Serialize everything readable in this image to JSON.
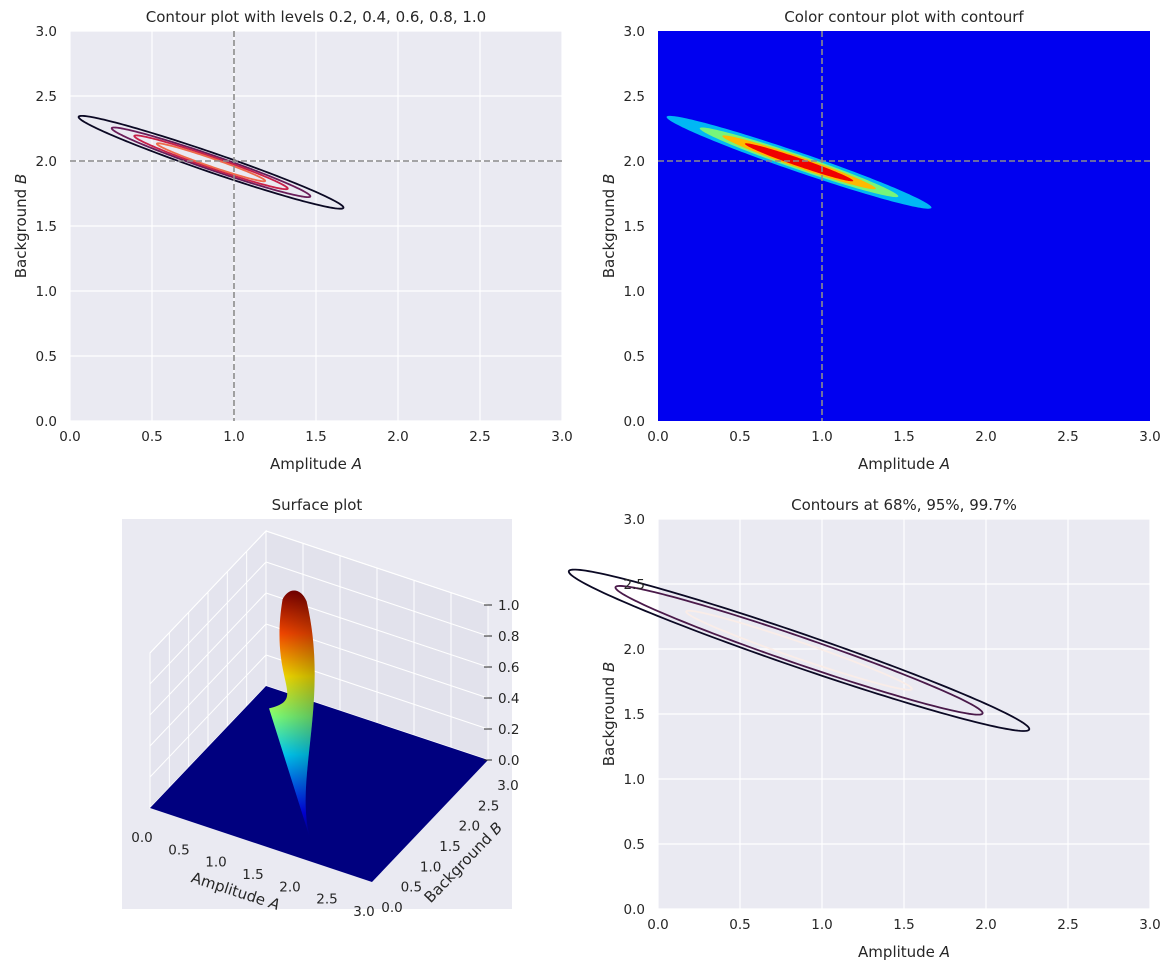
{
  "colors": {
    "axes_bg": "#EAEAF2",
    "grid": "#FFFFFF",
    "text": "#262626",
    "dashed": "#8C8C8C",
    "fill_bg": "#0000F0",
    "fill_levels": [
      "#00B7F5",
      "#76F57A",
      "#FFB900",
      "#F00000"
    ],
    "line_levels": [
      "#0B0924",
      "#6A1E5A",
      "#C8204A",
      "#EE6A4A",
      "#F6B48A"
    ],
    "conf_levels": [
      "#0B0924",
      "#4A1A4A",
      "#FAEDE8"
    ]
  },
  "chart_data": [
    {
      "id": "contour",
      "type": "contour",
      "title": "Contour plot with levels 0.2, 0.4, 0.6, 0.8, 1.0",
      "xlabel": "Amplitude A",
      "ylabel": "Background B",
      "xlim": [
        0,
        3
      ],
      "ylim": [
        0,
        3
      ],
      "xticks": [
        "0.0",
        "0.5",
        "1.0",
        "1.5",
        "2.0",
        "2.5",
        "3.0"
      ],
      "yticks": [
        "0.0",
        "0.5",
        "1.0",
        "1.5",
        "2.0",
        "2.5",
        "3.0"
      ],
      "center": [
        0.86,
        1.99
      ],
      "tilt_deg": -23.5,
      "levels": [
        {
          "level": 0.2,
          "semi_major": 0.88,
          "semi_minor": 0.072
        },
        {
          "level": 0.4,
          "semi_major": 0.66,
          "semi_minor": 0.054
        },
        {
          "level": 0.6,
          "semi_major": 0.51,
          "semi_minor": 0.042
        },
        {
          "level": 0.8,
          "semi_major": 0.36,
          "semi_minor": 0.03
        }
      ],
      "reference_lines": {
        "x": 1.0,
        "y": 2.0
      }
    },
    {
      "id": "contourf",
      "type": "filled-contour",
      "title": "Color contour plot with contourf",
      "xlabel": "Amplitude A",
      "ylabel": "Background B",
      "xlim": [
        0,
        3
      ],
      "ylim": [
        0,
        3
      ],
      "xticks": [
        "0.0",
        "0.5",
        "1.0",
        "1.5",
        "2.0",
        "2.5",
        "3.0"
      ],
      "yticks": [
        "0.0",
        "0.5",
        "1.0",
        "1.5",
        "2.0",
        "2.5",
        "3.0"
      ],
      "center": [
        0.86,
        1.99
      ],
      "tilt_deg": -23.5,
      "levels": [
        {
          "level": 0.2,
          "semi_major": 0.88,
          "semi_minor": 0.072
        },
        {
          "level": 0.4,
          "semi_major": 0.66,
          "semi_minor": 0.054
        },
        {
          "level": 0.6,
          "semi_major": 0.51,
          "semi_minor": 0.042
        },
        {
          "level": 0.8,
          "semi_major": 0.36,
          "semi_minor": 0.03
        }
      ],
      "reference_lines": {
        "x": 1.0,
        "y": 2.0
      }
    },
    {
      "id": "surface",
      "type": "surface-3d",
      "title": "Surface plot",
      "xlabel": "Amplitude A",
      "ylabel": "Background B",
      "xlim": [
        0,
        3
      ],
      "ylim": [
        0,
        3
      ],
      "zlim": [
        0,
        1
      ],
      "xticks": [
        "0.0",
        "0.5",
        "1.0",
        "1.5",
        "2.0",
        "2.5",
        "3.0"
      ],
      "yticks": [
        "0.0",
        "0.5",
        "1.0",
        "1.5",
        "2.0",
        "2.5",
        "3.0"
      ],
      "zticks": [
        "0.0",
        "0.2",
        "0.4",
        "0.6",
        "0.8",
        "1.0"
      ],
      "peak": [
        0.86,
        1.99,
        1.0
      ]
    },
    {
      "id": "confidence",
      "type": "contour",
      "title": "Contours at 68%, 95%, 99.7%",
      "xlabel": "Amplitude A",
      "ylabel": "Background B",
      "xlim": [
        0,
        3
      ],
      "ylim": [
        0,
        3
      ],
      "xticks": [
        "0.0",
        "0.5",
        "1.0",
        "1.5",
        "2.0",
        "2.5",
        "3.0"
      ],
      "yticks": [
        "0.0",
        "0.5",
        "1.0",
        "1.5",
        "2.0",
        "2.5",
        "3.0"
      ],
      "center": [
        0.86,
        1.99
      ],
      "tilt_deg": -23.5,
      "levels": [
        {
          "level": "99.7%",
          "semi_major": 1.53,
          "semi_minor": 0.125
        },
        {
          "level": "95%",
          "semi_major": 1.22,
          "semi_minor": 0.1
        },
        {
          "level": "68%",
          "semi_major": 0.75,
          "semi_minor": 0.061
        }
      ]
    }
  ]
}
